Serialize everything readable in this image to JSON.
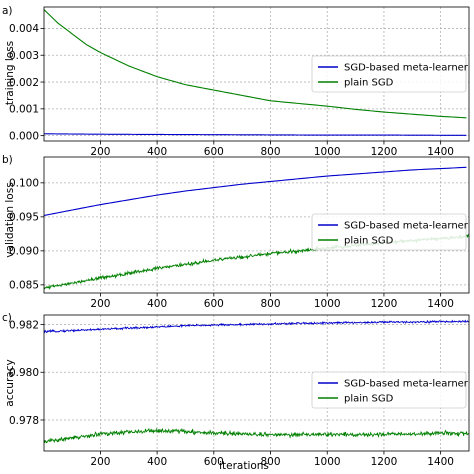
{
  "chart_data": [
    {
      "type": "line",
      "panel_label": "a)",
      "xlabel": "",
      "ylabel": "training loss",
      "xlim": [
        1,
        1500
      ],
      "ylim": [
        -0.0002,
        0.0048
      ],
      "xticks": [
        200,
        400,
        600,
        800,
        1000,
        1200,
        1400
      ],
      "yticks": [
        0.0,
        0.001,
        0.002,
        0.003,
        0.004
      ],
      "ytick_labels": [
        "0.000",
        "0.001",
        "0.002",
        "0.003",
        "0.004"
      ],
      "grid": true,
      "legend_position": "center-right",
      "series": [
        {
          "name": "SGD-based meta-learner",
          "color": "#0000cc",
          "x": [
            1,
            100,
            250,
            500,
            750,
            1000,
            1250,
            1500
          ],
          "y": [
            7e-05,
            6e-05,
            5e-05,
            4e-05,
            3e-05,
            2e-05,
            2e-05,
            1e-05
          ]
        },
        {
          "name": "plain SGD",
          "color": "#008000",
          "x": [
            1,
            50,
            100,
            150,
            200,
            300,
            400,
            500,
            600,
            700,
            800,
            900,
            1000,
            1100,
            1200,
            1300,
            1400,
            1500
          ],
          "y": [
            0.0047,
            0.0042,
            0.0038,
            0.0034,
            0.0031,
            0.0026,
            0.0022,
            0.0019,
            0.0017,
            0.0015,
            0.0013,
            0.0012,
            0.0011,
            0.00098,
            0.00088,
            0.0008,
            0.00072,
            0.00066
          ]
        }
      ]
    },
    {
      "type": "line",
      "panel_label": "b)",
      "xlabel": "",
      "ylabel": "validation loss",
      "xlim": [
        1,
        1500
      ],
      "ylim": [
        0.0838,
        0.1038
      ],
      "xticks": [
        200,
        400,
        600,
        800,
        1000,
        1200,
        1400
      ],
      "yticks": [
        0.085,
        0.09,
        0.095,
        0.1
      ],
      "ytick_labels": [
        "0.085",
        "0.090",
        "0.095",
        "0.100"
      ],
      "grid": true,
      "legend_position": "center-right",
      "series": [
        {
          "name": "SGD-based meta-learner",
          "color": "#0000cc",
          "x": [
            1,
            100,
            200,
            300,
            400,
            500,
            600,
            700,
            800,
            900,
            1000,
            1100,
            1200,
            1300,
            1400,
            1500
          ],
          "y": [
            0.0952,
            0.096,
            0.0968,
            0.0975,
            0.0982,
            0.0988,
            0.0993,
            0.0998,
            0.1002,
            0.1006,
            0.101,
            0.1013,
            0.1016,
            0.1019,
            0.1021,
            0.1023
          ]
        },
        {
          "name": "plain SGD",
          "color": "#008000",
          "noise": 0.00035,
          "x": [
            1,
            100,
            200,
            300,
            400,
            500,
            600,
            700,
            800,
            900,
            1000,
            1100,
            1200,
            1300,
            1400,
            1500
          ],
          "y": [
            0.0845,
            0.0852,
            0.086,
            0.0867,
            0.0874,
            0.088,
            0.0886,
            0.0891,
            0.0896,
            0.09,
            0.0904,
            0.0908,
            0.0912,
            0.0915,
            0.0918,
            0.0922
          ]
        }
      ]
    },
    {
      "type": "line",
      "panel_label": "c)",
      "xlabel": "iterations",
      "ylabel": "accuracy",
      "xlim": [
        1,
        1500
      ],
      "ylim": [
        0.9767,
        0.9824
      ],
      "xticks": [
        200,
        400,
        600,
        800,
        1000,
        1200,
        1400
      ],
      "yticks": [
        0.978,
        0.98,
        0.982
      ],
      "ytick_labels": [
        "0.978",
        "0.980",
        "0.982"
      ],
      "grid": true,
      "legend_position": "center-right",
      "series": [
        {
          "name": "SGD-based meta-learner",
          "color": "#0000cc",
          "noise": 6e-05,
          "x": [
            1,
            100,
            200,
            300,
            400,
            500,
            600,
            700,
            800,
            900,
            1000,
            1100,
            1200,
            1300,
            1400,
            1500
          ],
          "y": [
            0.9817,
            0.98175,
            0.9818,
            0.98185,
            0.9819,
            0.98195,
            0.98198,
            0.982,
            0.98202,
            0.98205,
            0.98207,
            0.98208,
            0.9821,
            0.98211,
            0.98212,
            0.98213
          ]
        },
        {
          "name": "plain SGD",
          "color": "#008000",
          "noise": 0.00013,
          "x": [
            1,
            100,
            200,
            300,
            400,
            500,
            600,
            700,
            800,
            900,
            1000,
            1100,
            1200,
            1300,
            1400,
            1500
          ],
          "y": [
            0.9771,
            0.97725,
            0.9774,
            0.9775,
            0.97755,
            0.97752,
            0.97745,
            0.97742,
            0.97738,
            0.97738,
            0.9774,
            0.97738,
            0.9774,
            0.97742,
            0.97745,
            0.97742
          ]
        }
      ]
    }
  ]
}
